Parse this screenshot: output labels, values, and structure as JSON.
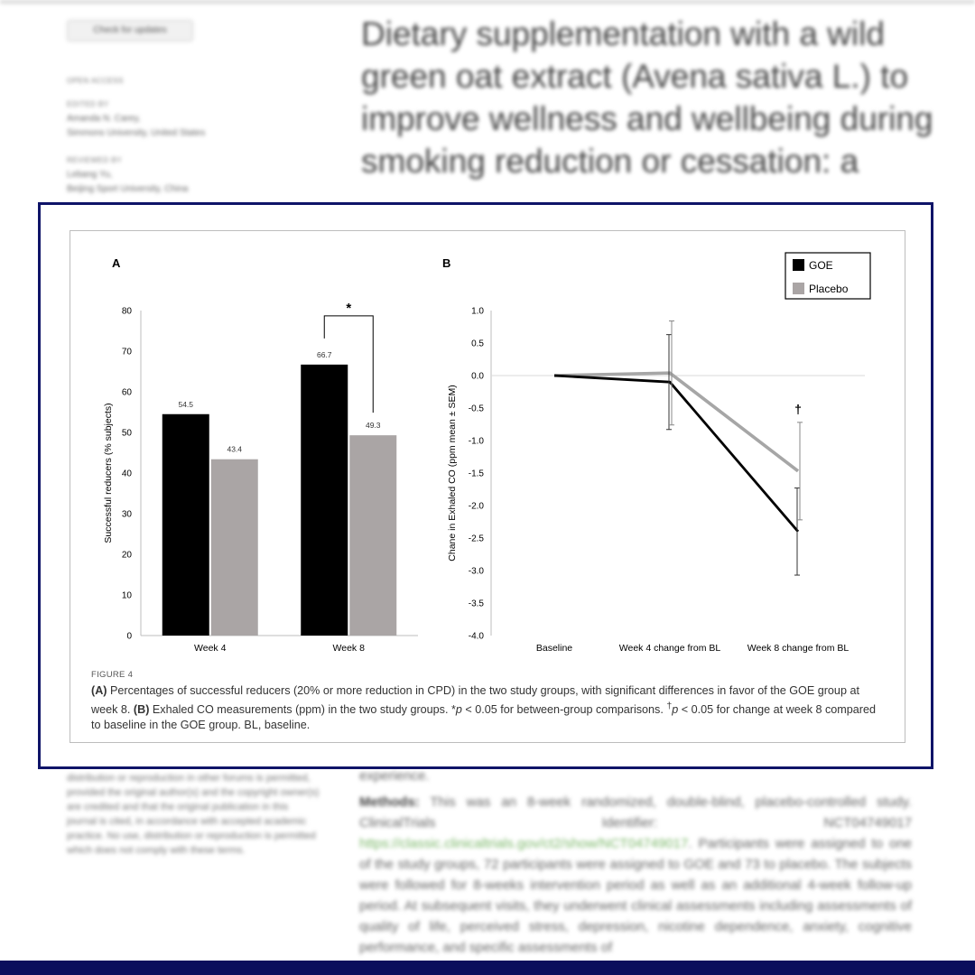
{
  "background": {
    "check_updates": "Check for updates",
    "open_access": "OPEN ACCESS",
    "edited_by_label": "EDITED BY",
    "editor_name": "Amanda N. Carey,",
    "editor_affiliation": "Simmons University, United States",
    "reviewed_by_label": "REVIEWED BY",
    "reviewer_name": "Lebang Yu,",
    "reviewer_affiliation": "Beijing Sport University, China",
    "title": "Dietary supplementation with a wild green oat extract (Avena sativa L.) to improve wellness and wellbeing during smoking reduction or cessation: a",
    "license_text": "distribution or reproduction in other forums is permitted, provided the original author(s) and the copyright owner(s) are credited and that the original publication in this journal is cited, in accordance with accepted academic practice. No use, distribution or reproduction is permitted which does not comply with these terms.",
    "experience_word": "experience.",
    "methods_label": "Methods:",
    "methods_text_1": "This was an 8-week randomized, double-blind, placebo-controlled study. ClinicalTrials Identifier: NCT04749017",
    "methods_link": "https://classic.clinicaltrials.gov/ct2/show/NCT04749017",
    "methods_text_2": ". Participants were assigned to one of the study groups, 72 participants were assigned to GOE and 73 to placebo. The subjects were followed for 8-weeks intervention period as well as an additional 4-week follow-up period. At subsequent visits, they underwent clinical assessments including assessments of quality of life, perceived stress, depression, nicotine dependence, anxiety, cognitive performance, and specific assessments of"
  },
  "figure": {
    "label": "FIGURE 4",
    "caption_a_label": "(A)",
    "caption_a_text": " Percentages of successful reducers (20% or more reduction in CPD) in the two study groups, with significant differences in favor of the GOE group at week 8. ",
    "caption_b_label": "(B)",
    "caption_b_text": " Exhaled CO measurements (ppm) in the two study groups. *",
    "caption_p1": "p",
    "caption_mid": " < 0.05 for between-group comparisons. ",
    "caption_dagger": "†",
    "caption_p2": "p",
    "caption_end": " < 0.05 for change at week 8 compared to baseline in the GOE group. BL, baseline."
  },
  "colors": {
    "goe": "#000000",
    "placebo": "#aaa5a5",
    "placebo_line": "#a6a6a6",
    "frame": "#0f1468"
  },
  "chart_data": [
    {
      "panel": "A",
      "type": "bar",
      "categories": [
        "Week 4",
        "Week 8"
      ],
      "series": [
        {
          "name": "GOE",
          "values": [
            54.5,
            66.7
          ]
        },
        {
          "name": "Placebo",
          "values": [
            43.4,
            49.3
          ]
        }
      ],
      "data_labels": [
        "54.5",
        "43.4",
        "66.7",
        "49.3"
      ],
      "ylabel": "Successful reducers (% subjects)",
      "ylim": [
        0,
        80
      ],
      "yticks": [
        0,
        10,
        20,
        30,
        40,
        50,
        60,
        70,
        80
      ],
      "significance": {
        "category": "Week 8",
        "symbol": "*"
      },
      "grid": false
    },
    {
      "panel": "B",
      "type": "line",
      "x": [
        "Baseline",
        "Week 4 change from BL",
        "Week 8 change from BL"
      ],
      "series": [
        {
          "name": "GOE",
          "values": [
            0.0,
            -0.1,
            -2.4
          ],
          "sem": [
            0,
            0.73,
            0.67
          ]
        },
        {
          "name": "Placebo",
          "values": [
            0.0,
            0.04,
            -1.47
          ],
          "sem": [
            0,
            0.8,
            0.75
          ]
        }
      ],
      "ylabel": "Chane in Exhaled CO (ppm mean ± SEM)",
      "ylim": [
        -4.0,
        1.0
      ],
      "yticks": [
        "1.0",
        "0.5",
        "0.0",
        "-0.5",
        "-1.0",
        "-1.5",
        "-2.0",
        "-2.5",
        "-3.0",
        "-3.5",
        "-4.0"
      ],
      "annotation": {
        "x": "Week 8 change from BL",
        "symbol": "†"
      },
      "legend": {
        "position": "top-right",
        "entries": [
          "GOE",
          "Placebo"
        ]
      },
      "grid": false
    }
  ]
}
